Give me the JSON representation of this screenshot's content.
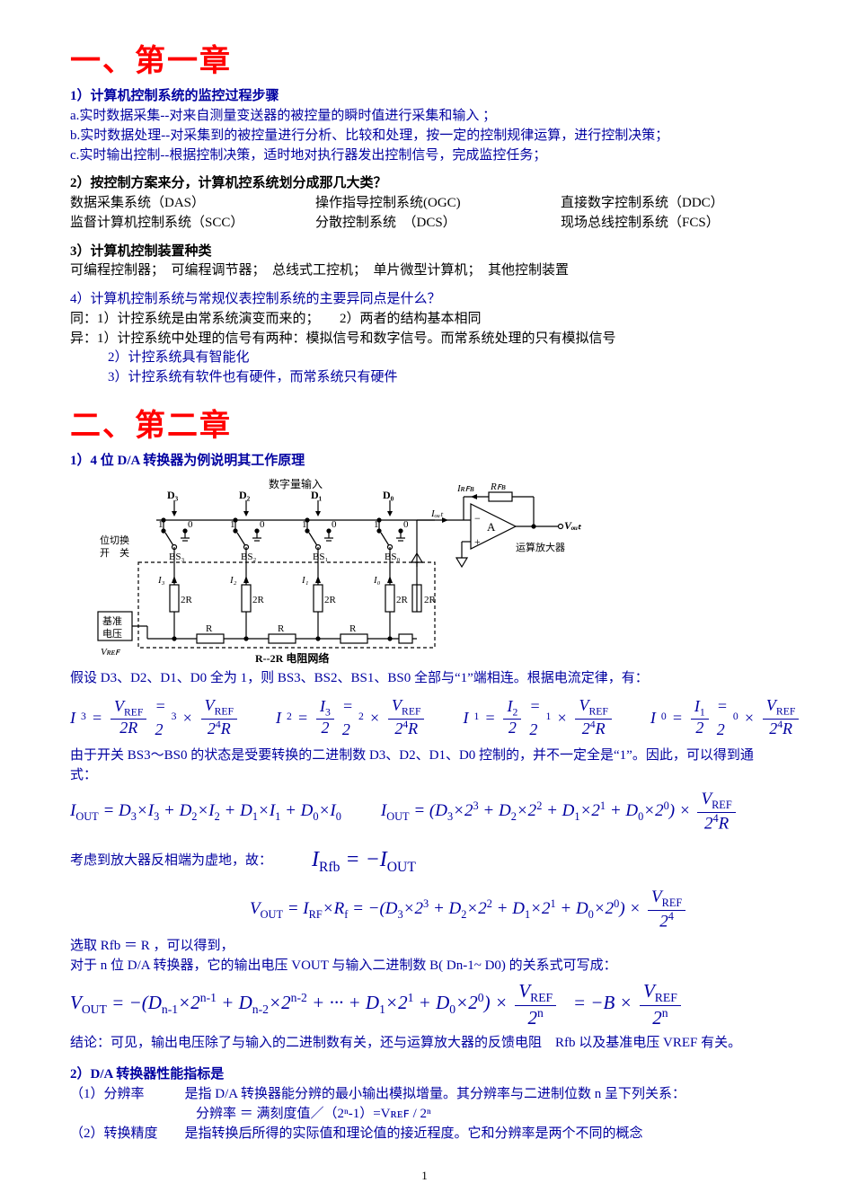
{
  "chapter1": {
    "title": "一、第一章",
    "s1": {
      "head": "1）计算机控制系统的监控过程步骤",
      "a": "a.实时数据采集--对来自测量变送器的被控量的瞬时值进行采集和输入 ；",
      "b": "b.实时数据处理--对采集到的被控量进行分析、比较和处理，按一定的控制规律运算，进行控制决策；",
      "c": "c.实时输出控制--根据控制决策，适时地对执行器发出控制信号，完成监控任务；"
    },
    "s2": {
      "head": "2）按控制方案来分，计算机控系统划分成那几大类？",
      "r1c1": "数据采集系统（DAS）",
      "r1c2": "操作指导控制系统(OGC)",
      "r1c3": "直接数字控制系统（DDC）",
      "r2c1": "监督计算机控制系统（SCC）",
      "r2c2": "分散控制系统　（DCS）",
      "r2c3": "现场总线控制系统（FCS）"
    },
    "s3": {
      "head": "3）计算机控制装置种类",
      "body": "可编程控制器；　可编程调节器；　总线式工控机；　单片微型计算机；　其他控制装置"
    },
    "s4": {
      "head": "4）计算机控制系统与常规仪表控制系统的主要异同点是什么？",
      "same": "同：1）计控系统是由常系统演变而来的；　　2）两者的结构基本相同",
      "diff1": "异：1）计控系统中处理的信号有两种：模拟信号和数字信号。而常系统处理的只有模拟信号",
      "diff2": "2）计控系统具有智能化",
      "diff3": "3）计控系统有软件也有硬件，而常系统只有硬件"
    }
  },
  "chapter2": {
    "title": "二、第二章",
    "s1": {
      "head": "1）4 位 D/A  转换器为例说明其工作原理",
      "circuit": {
        "top_label": "数字量输入",
        "bits": [
          "D₃",
          "D₂",
          "D₁",
          "D₀"
        ],
        "switch_label_left": "位切换\n开 关",
        "bs": [
          "BS₃",
          "BS₂",
          "BS₁",
          "BS₀"
        ],
        "r2r_vals": [
          "2R",
          "2R",
          "2R",
          "2R",
          "2R"
        ],
        "r_vals": [
          "R",
          "R",
          "R",
          "R"
        ],
        "i_labels": [
          "I₃",
          "I₂",
          "I₁",
          "I₀"
        ],
        "iout": "Iₒᵤₜ",
        "irfb": "Iʀꜰʙ",
        "rfb": "Rꜰʙ",
        "vout": "Vₒᵤₜ",
        "amp": "A",
        "amp_label": "运算放大器",
        "vref_box": "基准\n电压",
        "vref": "Vʀᴇꜰ",
        "bottom_caption": "R--2R 电阻网络",
        "colors": {
          "stroke": "#000000",
          "bg": "#ffffff"
        }
      },
      "assume": "假设 D3、D2、D1、D0 全为 1，则 BS3、BS2、BS1、BS0 全部与“1”端相连。根据电流定律，有：",
      "text_after_eq": "由于开关 BS3～BS0 的状态是受要转换的二进制数 D3、D2、D1、D0 控制的，并不一定全是“1”。因此，可以得到通式：",
      "consider": "考虑到放大器反相端为虚地，故：",
      "rfb_eq_r": "选取 Rfb ＝ R ，可以得到，",
      "nbit": "对于 n 位 D/A  转换器，它的输出电压 VOUT 与输入二进制数 B( Dn-1~ D0)  的关系式可写成：",
      "conclusion": "结论：可见，输出电压除了与输入的二进制数有关，还与运算放大器的反馈电阻　Rfb 以及基准电压 VREF 有关。"
    },
    "s2": {
      "head": "2）D/A 转换器性能指标是",
      "r1": "（1）分辨率　　　是指 D/A  转换器能分辨的最小输出模拟增量。其分辨率与二进制位数 n 呈下列关系：",
      "r1b": "分辨率 ＝ 满刻度值／（2ⁿ-1）=Vʀᴇꜰ / 2ⁿ",
      "r2": "（2）转换精度　　是指转换后所得的实际值和理论值的接近程度。它和分辨率是两个不同的概念"
    }
  },
  "page_number": "1"
}
